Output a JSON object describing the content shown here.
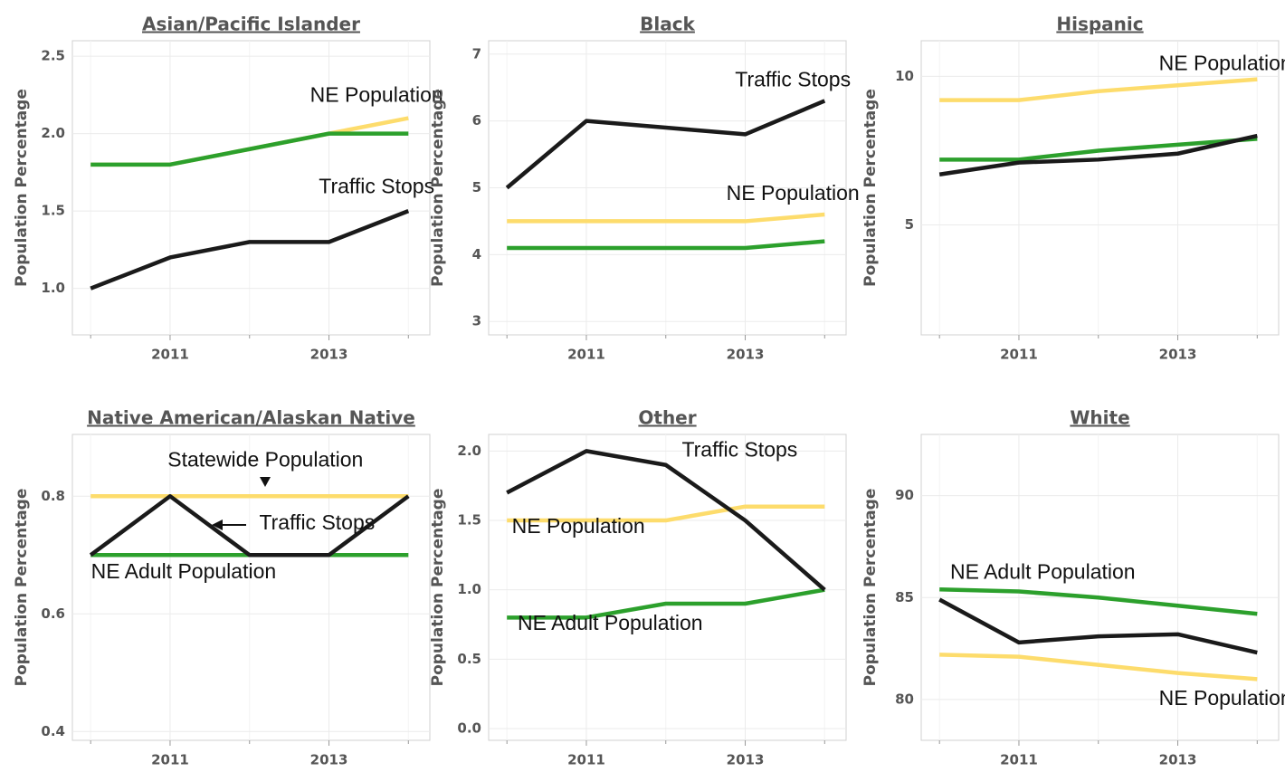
{
  "chart_data": [
    {
      "type": "line",
      "title": "Asian/Pacific Islander",
      "ylabel": "Population Percentage",
      "x": [
        2010,
        2011,
        2012,
        2013,
        2014
      ],
      "xlim": [
        2009.77,
        2014.27
      ],
      "xticks": [
        2011,
        2013
      ],
      "xminorticks": [
        2010,
        2012,
        2014
      ],
      "ylim": [
        0.7,
        2.6
      ],
      "yticks": [
        {
          "value": 1,
          "label": "1.0"
        },
        {
          "value": 1.5,
          "label": "1.5"
        },
        {
          "value": 2,
          "label": "2.0"
        },
        {
          "value": 2.5,
          "label": "2.5"
        }
      ],
      "grid": true,
      "series": [
        {
          "color": "#fddc6c",
          "values": [
            1.8,
            1.8,
            1.9,
            2.0,
            2.1
          ]
        },
        {
          "color": "#2ca02c",
          "values": [
            1.8,
            1.8,
            1.9,
            2.0,
            2.0
          ]
        },
        {
          "color": "#1a1a1a",
          "values": [
            1.0,
            1.2,
            1.3,
            1.3,
            1.5
          ]
        }
      ],
      "annotations": [
        {
          "text": "NE Population",
          "x": 2013.6,
          "y": 2.24
        },
        {
          "text": "Traffic Stops",
          "x": 2013.6,
          "y": 1.65
        }
      ]
    },
    {
      "type": "line",
      "title": "Black",
      "ylabel": "Population Percentage",
      "x": [
        2010,
        2011,
        2012,
        2013,
        2014
      ],
      "xlim": [
        2009.77,
        2014.27
      ],
      "xticks": [
        2011,
        2013
      ],
      "xminorticks": [
        2010,
        2012,
        2014
      ],
      "ylim": [
        2.8,
        7.2
      ],
      "yticks": [
        3,
        4,
        5,
        6,
        7
      ],
      "grid": true,
      "series": [
        {
          "color": "#fddc6c",
          "values": [
            4.5,
            4.5,
            4.5,
            4.5,
            4.6
          ]
        },
        {
          "color": "#2ca02c",
          "values": [
            4.1,
            4.1,
            4.1,
            4.1,
            4.2
          ]
        },
        {
          "color": "#1a1a1a",
          "values": [
            5.0,
            6.0,
            5.9,
            5.8,
            6.3
          ]
        }
      ],
      "annotations": [
        {
          "text": "Traffic Stops",
          "x": 2013.6,
          "y": 6.6
        },
        {
          "text": "NE Population",
          "x": 2013.6,
          "y": 4.9
        }
      ]
    },
    {
      "type": "line",
      "title": "Hispanic",
      "ylabel": "Population Percentage",
      "x": [
        2010,
        2011,
        2012,
        2013,
        2014
      ],
      "xlim": [
        2009.77,
        2014.27
      ],
      "xticks": [
        2011,
        2013
      ],
      "xminorticks": [
        2010,
        2012,
        2014
      ],
      "ylim": [
        1.3,
        11.2
      ],
      "yticks": [
        5,
        10
      ],
      "grid": true,
      "series": [
        {
          "color": "#fddc6c",
          "values": [
            9.2,
            9.2,
            9.5,
            9.7,
            9.9
          ]
        },
        {
          "color": "#2ca02c",
          "values": [
            7.2,
            7.2,
            7.5,
            7.7,
            7.9
          ]
        },
        {
          "color": "#1a1a1a",
          "values": [
            6.7,
            7.1,
            7.2,
            7.4,
            8.0
          ]
        }
      ],
      "annotations": [
        {
          "text": "NE Population",
          "x": 2013.6,
          "y": 10.4
        }
      ]
    },
    {
      "type": "line",
      "title": "Native American/Alaskan Native",
      "ylabel": "Population Percentage",
      "x": [
        2010,
        2011,
        2012,
        2013,
        2014
      ],
      "xlim": [
        2009.77,
        2014.27
      ],
      "xticks": [
        2011,
        2013
      ],
      "xminorticks": [
        2010,
        2012,
        2014
      ],
      "ylim": [
        0.385,
        0.905
      ],
      "yticks": [
        0.4,
        0.6,
        0.8
      ],
      "grid": true,
      "series": [
        {
          "color": "#fddc6c",
          "values": [
            0.8,
            0.8,
            0.8,
            0.8,
            0.8
          ]
        },
        {
          "color": "#2ca02c",
          "values": [
            0.7,
            0.7,
            0.7,
            0.7,
            0.7
          ]
        },
        {
          "color": "#1a1a1a",
          "values": [
            0.7,
            0.8,
            0.7,
            0.7,
            0.8
          ]
        }
      ],
      "annotations": [
        {
          "text": "Statewide Population",
          "x": 2012.2,
          "y": 0.86
        },
        {
          "text": "Traffic Stops",
          "x": 2012.85,
          "y": 0.753
        },
        {
          "text": "NE Adult Population",
          "x": 2011.17,
          "y": 0.67
        }
      ]
    },
    {
      "type": "line",
      "title": "Other",
      "ylabel": "Population Percentage",
      "x": [
        2010,
        2011,
        2012,
        2013,
        2014
      ],
      "xlim": [
        2009.77,
        2014.27
      ],
      "xticks": [
        2011,
        2013
      ],
      "xminorticks": [
        2010,
        2012,
        2014
      ],
      "ylim": [
        -0.085,
        2.12
      ],
      "yticks": [
        {
          "value": 0,
          "label": "0.0"
        },
        {
          "value": 0.5,
          "label": "0.5"
        },
        {
          "value": 1,
          "label": "1.0"
        },
        {
          "value": 1.5,
          "label": "1.5"
        },
        {
          "value": 2,
          "label": "2.0"
        }
      ],
      "grid": true,
      "series": [
        {
          "color": "#fddc6c",
          "values": [
            1.5,
            1.5,
            1.5,
            1.6,
            1.6
          ]
        },
        {
          "color": "#2ca02c",
          "values": [
            0.8,
            0.8,
            0.9,
            0.9,
            1.0
          ]
        },
        {
          "color": "#1a1a1a",
          "values": [
            1.7,
            2.0,
            1.9,
            1.5,
            1.0
          ]
        }
      ],
      "annotations": [
        {
          "text": "Traffic Stops",
          "x": 2012.93,
          "y": 2.0
        },
        {
          "text": "NE Population",
          "x": 2010.9,
          "y": 1.45
        },
        {
          "text": "NE Adult Population",
          "x": 2011.3,
          "y": 0.75
        }
      ]
    },
    {
      "type": "line",
      "title": "White",
      "ylabel": "Population Percentage",
      "x": [
        2010,
        2011,
        2012,
        2013,
        2014
      ],
      "xlim": [
        2009.77,
        2014.27
      ],
      "xticks": [
        2011,
        2013
      ],
      "xminorticks": [
        2010,
        2012,
        2014
      ],
      "ylim": [
        78,
        93
      ],
      "yticks": [
        80,
        85,
        90
      ],
      "grid": true,
      "series": [
        {
          "color": "#fddc6c",
          "values": [
            82.2,
            82.1,
            81.7,
            81.3,
            81.0
          ]
        },
        {
          "color": "#2ca02c",
          "values": [
            85.4,
            85.3,
            85.0,
            84.6,
            84.2
          ]
        },
        {
          "color": "#1a1a1a",
          "values": [
            84.9,
            82.8,
            83.1,
            83.2,
            82.3
          ]
        }
      ],
      "annotations": [
        {
          "text": "NE Adult Population",
          "x": 2011.3,
          "y": 86.2
        },
        {
          "text": "NE Population",
          "x": 2013.6,
          "y": 80.0
        }
      ]
    }
  ]
}
